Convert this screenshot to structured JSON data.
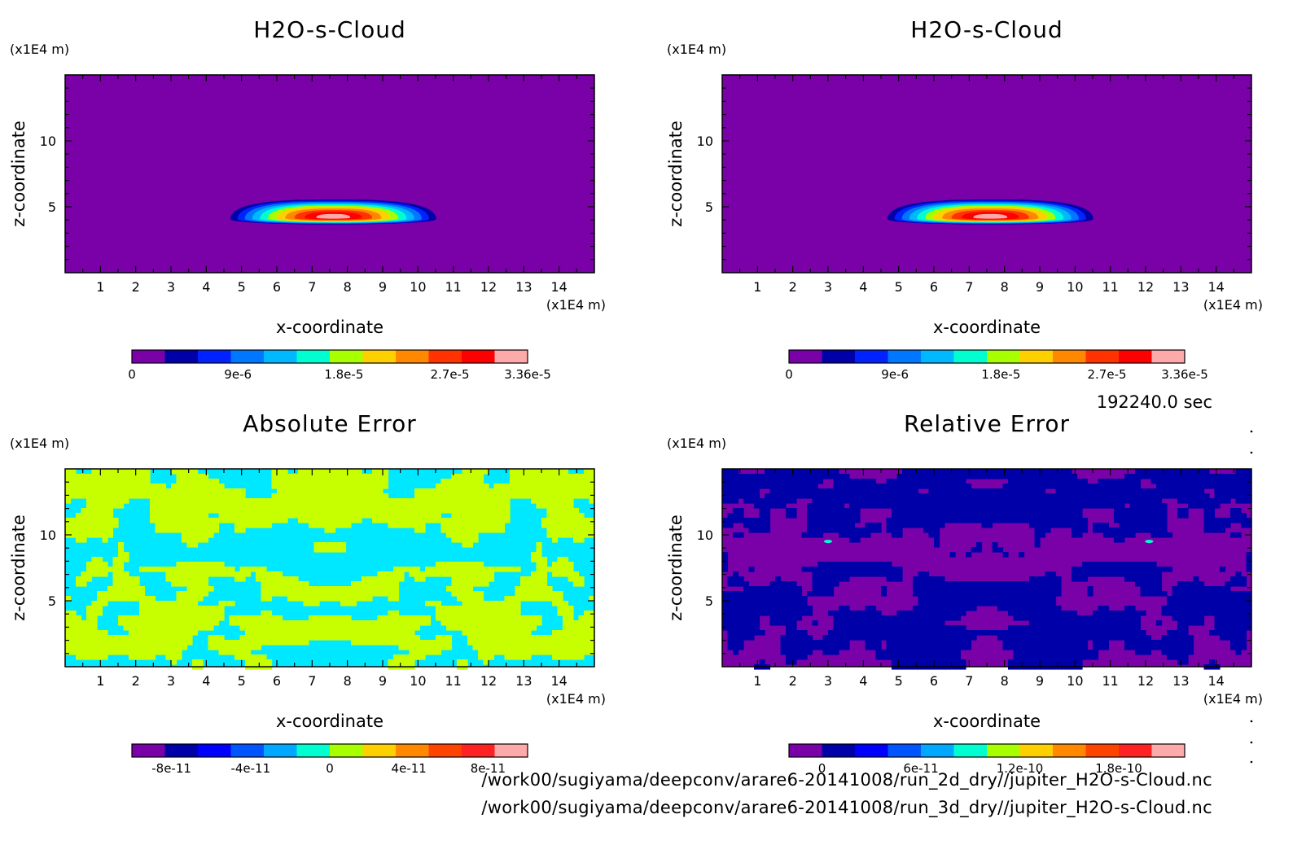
{
  "figure": {
    "time_label": "192240.0 sec",
    "file_paths": [
      "/work00/sugiyama/deepconv/arare6-20141008/run_2d_dry//jupiter_H2O-s-Cloud.nc",
      "/work00/sugiyama/deepconv/arare6-20141008/run_3d_dry//jupiter_H2O-s-Cloud.nc"
    ]
  },
  "colors": {
    "palette": [
      "#7a00a8",
      "#0000a8",
      "#0000ff",
      "#0055ff",
      "#00a8ff",
      "#00ffd0",
      "#a8ff00",
      "#ffd000",
      "#ff8800",
      "#ff4400",
      "#ff2222",
      "#ffaaaa"
    ],
    "cloud": [
      "#7a00a8",
      "#0000a8",
      "#0022ff",
      "#0077ff",
      "#00b8ff",
      "#00ffd0",
      "#a8ff00",
      "#ffd000",
      "#ff8800",
      "#ff3300",
      "#ff0000",
      "#ffaaaa"
    ],
    "abs_high": "#c8ff00",
    "abs_low": "#00e8ff",
    "rel_high": "#0000a8",
    "rel_low": "#7a00a8",
    "rel_spot": "#00ffd0"
  },
  "chart_data": [
    {
      "id": "p1",
      "type": "heatmap",
      "title": "H2O-s-Cloud",
      "xlabel": "x-coordinate",
      "ylabel": "z-coordinate",
      "x_unit": "(x1E4 m)",
      "y_unit": "(x1E4 m)",
      "xlim": [
        0,
        15
      ],
      "ylim": [
        0,
        15
      ],
      "x_ticks": [
        1,
        2,
        3,
        4,
        5,
        6,
        7,
        8,
        9,
        10,
        11,
        12,
        13,
        14
      ],
      "y_ticks": [
        5,
        10
      ],
      "field": {
        "kind": "blob",
        "center": [
          7.6,
          4.2
        ],
        "half_width": 5.4,
        "height": [
          3.0,
          5.5
        ],
        "max": 3.36e-05
      },
      "colorbar": {
        "labels": [
          "0",
          "9e-6",
          "1.8e-5",
          "2.7e-5",
          "3.36e-5"
        ],
        "label_values": [
          0,
          9e-06,
          1.8e-05,
          2.7e-05,
          3.36e-05
        ],
        "range": [
          0,
          3.36e-05
        ],
        "scheme": "cloud"
      }
    },
    {
      "id": "p2",
      "type": "heatmap",
      "title": "H2O-s-Cloud",
      "xlabel": "x-coordinate",
      "ylabel": "z-coordinate",
      "x_unit": "(x1E4 m)",
      "y_unit": "(x1E4 m)",
      "xlim": [
        0,
        15
      ],
      "ylim": [
        0,
        15
      ],
      "x_ticks": [
        1,
        2,
        3,
        4,
        5,
        6,
        7,
        8,
        9,
        10,
        11,
        12,
        13,
        14
      ],
      "y_ticks": [
        5,
        10
      ],
      "field": {
        "kind": "blob",
        "center": [
          7.6,
          4.2
        ],
        "half_width": 5.4,
        "height": [
          3.0,
          5.5
        ],
        "max": 3.36e-05
      },
      "colorbar": {
        "labels": [
          "0",
          "9e-6",
          "1.8e-5",
          "2.7e-5",
          "3.36e-5"
        ],
        "label_values": [
          0,
          9e-06,
          1.8e-05,
          2.7e-05,
          3.36e-05
        ],
        "range": [
          0,
          3.36e-05
        ],
        "scheme": "cloud"
      }
    },
    {
      "id": "p3",
      "type": "heatmap",
      "title": "Absolute Error",
      "xlabel": "x-coordinate",
      "ylabel": "z-coordinate",
      "x_unit": "(x1E4 m)",
      "y_unit": "(x1E4 m)",
      "xlim": [
        0,
        15
      ],
      "ylim": [
        0,
        15
      ],
      "x_ticks": [
        1,
        2,
        3,
        4,
        5,
        6,
        7,
        8,
        9,
        10,
        11,
        12,
        13,
        14
      ],
      "y_ticks": [
        5,
        10
      ],
      "field": {
        "kind": "noise2",
        "high": "abs_high",
        "low": "abs_low"
      },
      "colorbar": {
        "labels": [
          "-8e-11",
          "-4e-11",
          "0",
          "4e-11",
          "8e-11"
        ],
        "label_values": [
          -8e-11,
          -4e-11,
          0,
          4e-11,
          8e-11
        ],
        "range": [
          -1e-10,
          1e-10
        ],
        "scheme": "palette"
      }
    },
    {
      "id": "p4",
      "type": "heatmap",
      "title": "Relative Error",
      "xlabel": "x-coordinate",
      "ylabel": "z-coordinate",
      "x_unit": "(x1E4 m)",
      "y_unit": "(x1E4 m)",
      "xlim": [
        0,
        15
      ],
      "ylim": [
        0,
        15
      ],
      "x_ticks": [
        1,
        2,
        3,
        4,
        5,
        6,
        7,
        8,
        9,
        10,
        11,
        12,
        13,
        14
      ],
      "y_ticks": [
        5,
        10
      ],
      "field": {
        "kind": "noise2",
        "high": "rel_high",
        "low": "rel_low",
        "spots": [
          [
            3.0,
            9.5
          ],
          [
            12.1,
            9.5
          ]
        ]
      },
      "colorbar": {
        "labels": [
          "0",
          "6e-11",
          "1.2e-10",
          "1.8e-10"
        ],
        "label_values": [
          0,
          6e-11,
          1.2e-10,
          1.8e-10
        ],
        "range": [
          -2e-11,
          2.2e-10
        ],
        "scheme": "palette"
      }
    }
  ]
}
